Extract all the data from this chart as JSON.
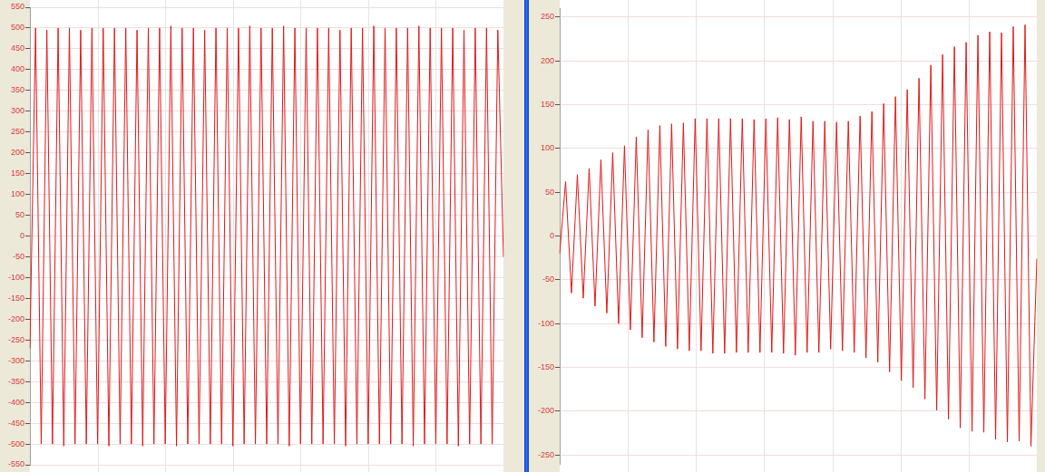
{
  "chart_data": [
    {
      "type": "line",
      "grid": true,
      "tick_labels": "y",
      "marker": "none",
      "ylim": [
        -550,
        550
      ],
      "yticks": [
        -550,
        -500,
        -450,
        -400,
        -350,
        -300,
        -250,
        -200,
        -150,
        -100,
        -50,
        0,
        50,
        100,
        150,
        200,
        250,
        300,
        350,
        400,
        450,
        500,
        550
      ],
      "categories": [
        null,
        null,
        null,
        null,
        null,
        null,
        null,
        null,
        null,
        null,
        null,
        null,
        null,
        null,
        null,
        null,
        null,
        null,
        null,
        null,
        null,
        null,
        null,
        null,
        null,
        null,
        null,
        null,
        null,
        null,
        null,
        null,
        null,
        null,
        null,
        null,
        null,
        null,
        null,
        null,
        null,
        null,
        null,
        null,
        null,
        null,
        null,
        null,
        null,
        null,
        null,
        null,
        null,
        null,
        null,
        null,
        null,
        null,
        null,
        null,
        null,
        null,
        null,
        null,
        null,
        null,
        null,
        null,
        null,
        null,
        null,
        null,
        null,
        null,
        null,
        null,
        null,
        null,
        null,
        null,
        null,
        null,
        null,
        null,
        null
      ],
      "series": [
        {
          "color": "#e01818",
          "values": [
            -270,
            500,
            -500,
            495,
            -500,
            500,
            -505,
            500,
            -500,
            495,
            -500,
            500,
            -500,
            500,
            -505,
            500,
            -500,
            500,
            -500,
            495,
            -505,
            500,
            -500,
            500,
            -500,
            505,
            -505,
            500,
            -500,
            500,
            -500,
            495,
            -500,
            500,
            -500,
            500,
            -505,
            500,
            -500,
            505,
            -500,
            500,
            -500,
            500,
            -500,
            505,
            -505,
            500,
            -500,
            500,
            -500,
            500,
            -500,
            500,
            -500,
            495,
            -505,
            500,
            -500,
            500,
            -500,
            505,
            -500,
            500,
            -500,
            500,
            -500,
            500,
            -505,
            505,
            -500,
            500,
            -500,
            500,
            -500,
            500,
            -505,
            495,
            -500,
            500,
            -500,
            500,
            -500,
            495,
            -50
          ]
        }
      ]
    },
    {
      "type": "line",
      "grid": true,
      "tick_labels": "y",
      "marker": "none",
      "ylim": [
        -260,
        260
      ],
      "yticks": [
        -250,
        -200,
        -150,
        -100,
        -50,
        0,
        50,
        100,
        150,
        200,
        250
      ],
      "categories": [
        null,
        null,
        null,
        null,
        null,
        null,
        null,
        null,
        null,
        null,
        null,
        null,
        null,
        null,
        null,
        null,
        null,
        null,
        null,
        null,
        null,
        null,
        null,
        null,
        null,
        null,
        null,
        null,
        null,
        null,
        null,
        null,
        null,
        null,
        null,
        null,
        null,
        null,
        null,
        null,
        null,
        null,
        null,
        null,
        null,
        null,
        null,
        null,
        null,
        null,
        null,
        null,
        null,
        null,
        null,
        null,
        null,
        null,
        null,
        null,
        null,
        null,
        null,
        null,
        null,
        null,
        null,
        null,
        null,
        null,
        null,
        null,
        null,
        null,
        null,
        null,
        null,
        null,
        null,
        null,
        null,
        null
      ],
      "series": [
        {
          "color": "#e01818",
          "values": [
            -20,
            62,
            -65,
            70,
            -71,
            77,
            -80,
            87,
            -88,
            95,
            -100,
            103,
            -107,
            113,
            -116,
            121,
            -121,
            126,
            -126,
            128,
            -129,
            129,
            -131,
            134,
            -131,
            134,
            -134,
            134,
            -134,
            134,
            -133,
            134,
            -133,
            133,
            -133,
            134,
            -133,
            135,
            -134,
            133,
            -136,
            136,
            -133,
            131,
            -133,
            131,
            -129,
            130,
            -131,
            131,
            -133,
            137,
            -139,
            142,
            -144,
            151,
            -155,
            159,
            -165,
            167,
            -173,
            180,
            -186,
            195,
            -199,
            207,
            -209,
            216,
            -219,
            221,
            -223,
            229,
            -224,
            233,
            -232,
            232,
            -235,
            239,
            -234,
            241,
            -240,
            -26
          ]
        }
      ]
    }
  ]
}
